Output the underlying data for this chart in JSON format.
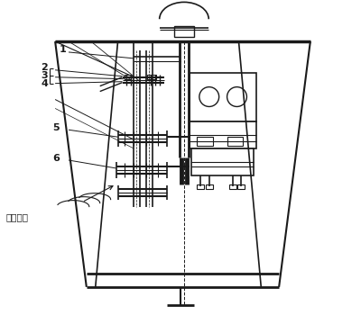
{
  "bg_color": "#ffffff",
  "line_color": "#1a1a1a",
  "lw_main": 1.2,
  "lw_thin": 0.7,
  "label_texts": {
    "jishi": "接示披器"
  },
  "fig_width": 4.0,
  "fig_height": 3.5,
  "dpi": 100
}
